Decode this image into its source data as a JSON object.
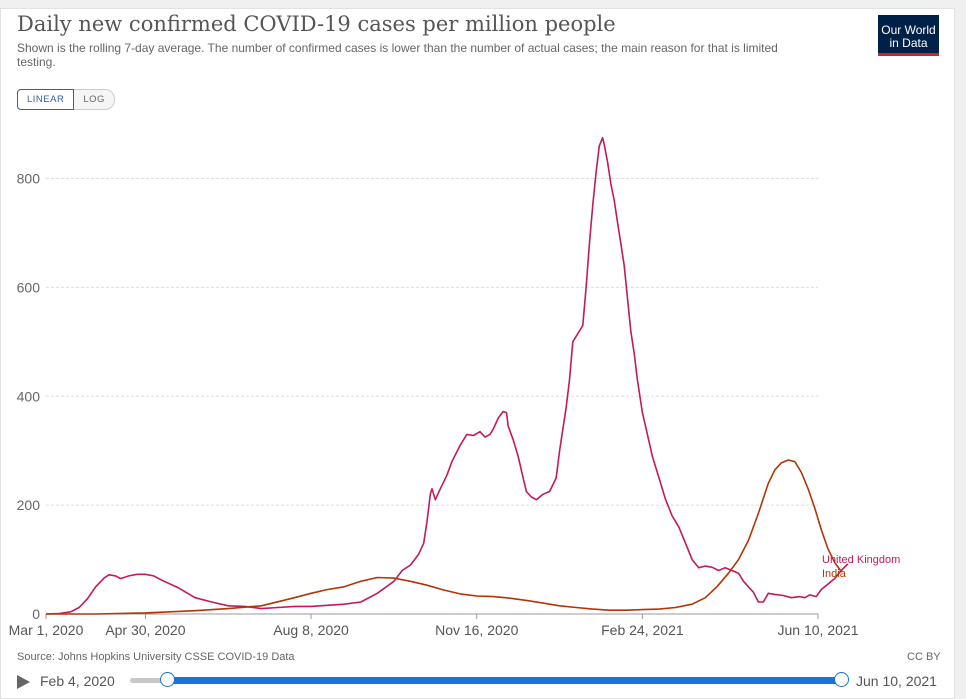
{
  "header": {
    "title": "Daily new confirmed COVID-19 cases per million people",
    "subtitle": "Shown is the rolling 7-day average. The number of confirmed cases is lower than the number of actual cases; the main reason for that is limited testing.",
    "logo_line1": "Our World",
    "logo_line2": "in Data"
  },
  "scale_toggle": {
    "linear": "LINEAR",
    "log": "LOG",
    "selected": "LINEAR"
  },
  "footer": {
    "source": "Source: Johns Hopkins University CSSE COVID-19 Data",
    "license": "CC BY"
  },
  "timeline": {
    "start_label": "Feb 4, 2020",
    "end_label": "Jun 10, 2021"
  },
  "colors": {
    "uk": "#c3195d",
    "india": "#b13507",
    "grid": "#dddddd"
  },
  "chart_data": {
    "type": "line",
    "title": "Daily new confirmed COVID-19 cases per million people",
    "x_unit": "days since Mar 1, 2020",
    "xlim": [
      0,
      466
    ],
    "ylim": [
      0,
      880
    ],
    "y_ticks": [
      0,
      200,
      400,
      600,
      800
    ],
    "x_ticks": [
      {
        "day": 0,
        "label": "Mar 1, 2020"
      },
      {
        "day": 60,
        "label": "Apr 30, 2020"
      },
      {
        "day": 160,
        "label": "Aug 8, 2020"
      },
      {
        "day": 260,
        "label": "Nov 16, 2020"
      },
      {
        "day": 360,
        "label": "Feb 24, 2021"
      },
      {
        "day": 466,
        "label": "Jun 10, 2021"
      }
    ],
    "grid": true,
    "series": [
      {
        "name": "United Kingdom",
        "points": [
          [
            0,
            0
          ],
          [
            8,
            1
          ],
          [
            15,
            4
          ],
          [
            20,
            12
          ],
          [
            25,
            28
          ],
          [
            30,
            50
          ],
          [
            35,
            66
          ],
          [
            38,
            72
          ],
          [
            42,
            70
          ],
          [
            45,
            65
          ],
          [
            50,
            70
          ],
          [
            55,
            73
          ],
          [
            60,
            73
          ],
          [
            65,
            70
          ],
          [
            70,
            62
          ],
          [
            80,
            48
          ],
          [
            90,
            30
          ],
          [
            100,
            22
          ],
          [
            110,
            15
          ],
          [
            120,
            14
          ],
          [
            130,
            10
          ],
          [
            140,
            12
          ],
          [
            150,
            14
          ],
          [
            160,
            14
          ],
          [
            170,
            16
          ],
          [
            180,
            18
          ],
          [
            190,
            22
          ],
          [
            200,
            38
          ],
          [
            210,
            60
          ],
          [
            215,
            80
          ],
          [
            220,
            90
          ],
          [
            225,
            110
          ],
          [
            228,
            130
          ],
          [
            230,
            170
          ],
          [
            232,
            220
          ],
          [
            233,
            230
          ],
          [
            235,
            210
          ],
          [
            238,
            230
          ],
          [
            242,
            255
          ],
          [
            245,
            280
          ],
          [
            250,
            310
          ],
          [
            254,
            330
          ],
          [
            258,
            328
          ],
          [
            262,
            335
          ],
          [
            265,
            325
          ],
          [
            268,
            330
          ],
          [
            270,
            340
          ],
          [
            273,
            360
          ],
          [
            276,
            372
          ],
          [
            278,
            370
          ],
          [
            279,
            345
          ],
          [
            282,
            320
          ],
          [
            285,
            290
          ],
          [
            288,
            250
          ],
          [
            290,
            225
          ],
          [
            293,
            215
          ],
          [
            296,
            210
          ],
          [
            300,
            220
          ],
          [
            304,
            225
          ],
          [
            308,
            250
          ],
          [
            310,
            300
          ],
          [
            312,
            340
          ],
          [
            314,
            380
          ],
          [
            316,
            430
          ],
          [
            318,
            500
          ],
          [
            320,
            510
          ],
          [
            322,
            520
          ],
          [
            324,
            530
          ],
          [
            326,
            600
          ],
          [
            328,
            680
          ],
          [
            330,
            750
          ],
          [
            332,
            810
          ],
          [
            334,
            860
          ],
          [
            336,
            875
          ],
          [
            337,
            862
          ],
          [
            339,
            830
          ],
          [
            341,
            790
          ],
          [
            343,
            760
          ],
          [
            345,
            720
          ],
          [
            347,
            680
          ],
          [
            349,
            640
          ],
          [
            351,
            580
          ],
          [
            353,
            520
          ],
          [
            355,
            480
          ],
          [
            357,
            430
          ],
          [
            360,
            370
          ],
          [
            363,
            330
          ],
          [
            366,
            290
          ],
          [
            370,
            250
          ],
          [
            374,
            210
          ],
          [
            378,
            180
          ],
          [
            382,
            160
          ],
          [
            386,
            130
          ],
          [
            390,
            100
          ],
          [
            394,
            85
          ],
          [
            398,
            88
          ],
          [
            402,
            86
          ],
          [
            406,
            80
          ],
          [
            410,
            85
          ],
          [
            414,
            80
          ],
          [
            418,
            75
          ],
          [
            421,
            60
          ],
          [
            424,
            50
          ],
          [
            427,
            40
          ],
          [
            430,
            22
          ],
          [
            433,
            22
          ],
          [
            436,
            38
          ],
          [
            440,
            36
          ],
          [
            445,
            34
          ],
          [
            450,
            30
          ],
          [
            455,
            32
          ],
          [
            458,
            30
          ],
          [
            461,
            35
          ],
          [
            465,
            32
          ],
          [
            468,
            45
          ],
          [
            472,
            55
          ],
          [
            476,
            65
          ],
          [
            480,
            80
          ],
          [
            484,
            92
          ]
        ]
      },
      {
        "name": "India",
        "points": [
          [
            0,
            0
          ],
          [
            30,
            0
          ],
          [
            60,
            2
          ],
          [
            90,
            6
          ],
          [
            110,
            10
          ],
          [
            130,
            15
          ],
          [
            150,
            30
          ],
          [
            160,
            38
          ],
          [
            170,
            45
          ],
          [
            180,
            50
          ],
          [
            190,
            60
          ],
          [
            200,
            67
          ],
          [
            210,
            66
          ],
          [
            220,
            60
          ],
          [
            230,
            53
          ],
          [
            240,
            44
          ],
          [
            250,
            37
          ],
          [
            260,
            33
          ],
          [
            270,
            32
          ],
          [
            280,
            29
          ],
          [
            290,
            25
          ],
          [
            300,
            20
          ],
          [
            310,
            15
          ],
          [
            320,
            12
          ],
          [
            330,
            9
          ],
          [
            340,
            7
          ],
          [
            350,
            7
          ],
          [
            360,
            8
          ],
          [
            370,
            9
          ],
          [
            380,
            12
          ],
          [
            390,
            18
          ],
          [
            398,
            30
          ],
          [
            405,
            50
          ],
          [
            412,
            75
          ],
          [
            418,
            100
          ],
          [
            424,
            135
          ],
          [
            430,
            185
          ],
          [
            436,
            240
          ],
          [
            440,
            265
          ],
          [
            444,
            278
          ],
          [
            448,
            283
          ],
          [
            452,
            280
          ],
          [
            456,
            260
          ],
          [
            460,
            230
          ],
          [
            464,
            195
          ],
          [
            468,
            155
          ],
          [
            472,
            120
          ],
          [
            476,
            95
          ],
          [
            480,
            78
          ]
        ]
      }
    ],
    "end_labels": [
      "United Kingdom",
      "India"
    ]
  }
}
